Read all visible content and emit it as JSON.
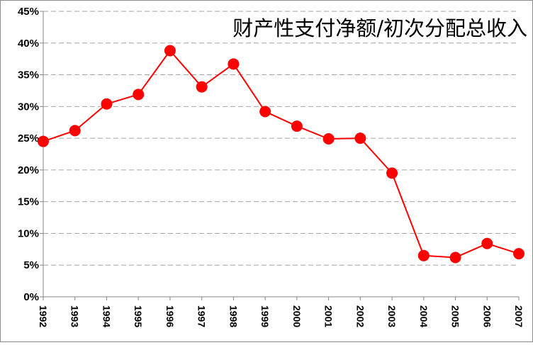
{
  "chart_data": {
    "type": "line",
    "title": "财产性支付净额/初次分配总收入",
    "xlabel": "",
    "ylabel": "",
    "x": [
      "1992",
      "1993",
      "1994",
      "1995",
      "1996",
      "1997",
      "1998",
      "1999",
      "2000",
      "2001",
      "2002",
      "2003",
      "2004",
      "2005",
      "2006",
      "2007"
    ],
    "series": [
      {
        "values": [
          24.5,
          26.2,
          30.4,
          31.9,
          38.8,
          33.1,
          36.7,
          29.2,
          26.9,
          24.9,
          25.0,
          19.5,
          6.5,
          6.2,
          8.4,
          6.8
        ]
      }
    ],
    "ylim": [
      0,
      45
    ],
    "yticks": [
      "0%",
      "5%",
      "10%",
      "15%",
      "20%",
      "25%",
      "30%",
      "35%",
      "40%",
      "45%"
    ],
    "grid": true,
    "legend": "none",
    "colors": {
      "line": "#ff0000",
      "marker": "#ff0000"
    }
  }
}
